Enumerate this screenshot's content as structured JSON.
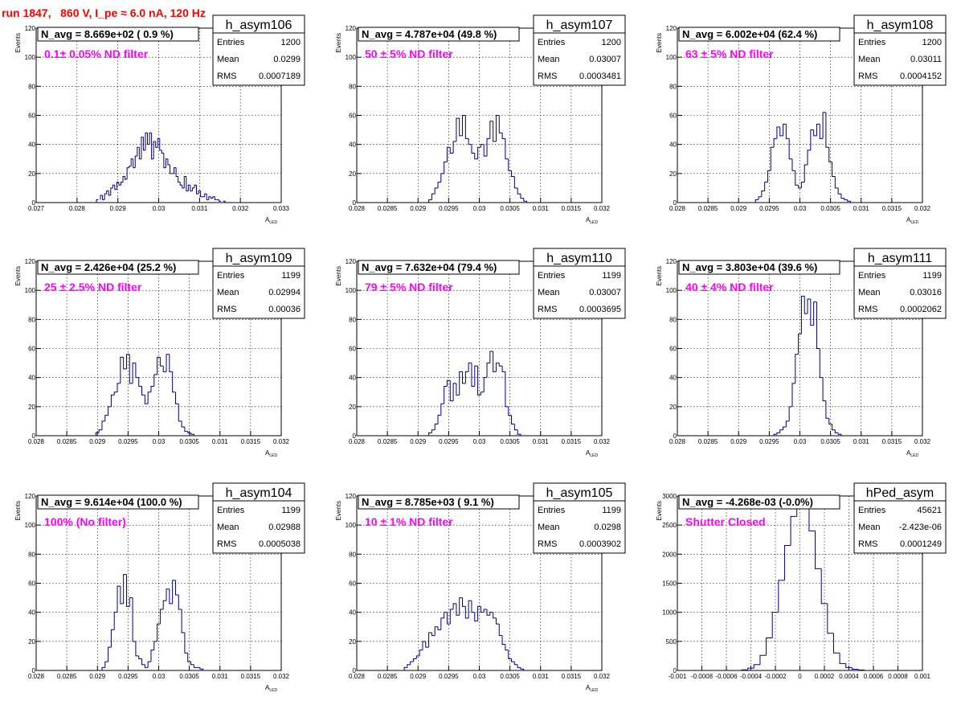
{
  "header": {
    "title": "run 1847,   860 V, I_pe ≈ 6.0 nA, 120 Hz"
  },
  "chart_data": [
    {
      "type": "bar",
      "name": "h_asym106",
      "navg": "N_avg = 8.669e+02 ( 0.9 %)",
      "filter": "0.1± 0.05% ND filter",
      "stats": {
        "entries": "1200",
        "mean": "0.0299",
        "rms": "0.0007189"
      },
      "stat_labels": [
        "Entries",
        "Mean",
        "RMS"
      ],
      "xlabel": "A_LED",
      "ylabel": "Events",
      "xlim": [
        0.027,
        0.033
      ],
      "ylim": [
        0,
        120
      ],
      "xticks": [
        "0.027",
        "0.028",
        "0.029",
        "0.03",
        "0.031",
        "0.032",
        "0.033"
      ],
      "yticks": [
        "0",
        "20",
        "40",
        "60",
        "80",
        "100",
        "120"
      ],
      "x": [
        0.0285,
        0.0286,
        0.02865,
        0.0287,
        0.02875,
        0.0288,
        0.02885,
        0.0289,
        0.02895,
        0.029,
        0.02905,
        0.0291,
        0.02915,
        0.0292,
        0.02925,
        0.0293,
        0.02935,
        0.0294,
        0.02945,
        0.0295,
        0.02955,
        0.0296,
        0.02965,
        0.0297,
        0.02975,
        0.0298,
        0.02985,
        0.0299,
        0.02995,
        0.03,
        0.03005,
        0.0301,
        0.03015,
        0.0302,
        0.03025,
        0.0303,
        0.03035,
        0.0304,
        0.03045,
        0.0305,
        0.03055,
        0.0306,
        0.03065,
        0.0307,
        0.03075,
        0.0308,
        0.03085,
        0.0309,
        0.03095,
        0.031,
        0.03105,
        0.0311,
        0.03115,
        0.0312,
        0.03125,
        0.0313,
        0.03135,
        0.0314,
        0.03145,
        0.0315,
        0.0316
      ],
      "values": [
        2,
        5,
        2,
        6,
        8,
        5,
        10,
        12,
        9,
        14,
        12,
        14,
        18,
        16,
        24,
        25,
        30,
        24,
        32,
        38,
        30,
        45,
        36,
        48,
        40,
        48,
        30,
        42,
        38,
        44,
        36,
        34,
        24,
        30,
        26,
        20,
        20,
        24,
        18,
        14,
        12,
        10,
        18,
        8,
        12,
        8,
        10,
        12,
        6,
        8,
        4,
        4,
        6,
        2,
        4,
        3,
        4,
        2,
        2,
        1,
        1
      ]
    },
    {
      "type": "bar",
      "name": "h_asym107",
      "navg": "N_avg = 4.787e+04 (49.8 %)",
      "filter": "50 ± 5% ND filter",
      "stats": {
        "entries": "1200",
        "mean": "0.03007",
        "rms": "0.0003481"
      },
      "stat_labels": [
        "Entries",
        "Mean",
        "RMS"
      ],
      "xlabel": "A_LED",
      "ylabel": "Events",
      "xlim": [
        0.028,
        0.032
      ],
      "ylim": [
        0,
        120
      ],
      "xticks": [
        "0.028",
        "0.0285",
        "0.029",
        "0.0295",
        "0.03",
        "0.0305",
        "0.031",
        "0.0315",
        "0.032"
      ],
      "yticks": [
        "0",
        "20",
        "40",
        "60",
        "80",
        "100",
        "120"
      ],
      "x": [
        0.0292,
        0.02925,
        0.0293,
        0.02935,
        0.0294,
        0.02945,
        0.0295,
        0.02955,
        0.0296,
        0.02965,
        0.0297,
        0.02975,
        0.0298,
        0.02985,
        0.0299,
        0.02995,
        0.03,
        0.03005,
        0.0301,
        0.03015,
        0.0302,
        0.03025,
        0.0303,
        0.03035,
        0.0304,
        0.03045,
        0.0305,
        0.03055,
        0.0306,
        0.03065,
        0.0307,
        0.03075
      ],
      "values": [
        2,
        6,
        10,
        14,
        20,
        28,
        38,
        34,
        42,
        58,
        46,
        60,
        44,
        40,
        34,
        30,
        38,
        40,
        32,
        44,
        56,
        42,
        60,
        48,
        44,
        30,
        22,
        18,
        10,
        6,
        3,
        1
      ]
    },
    {
      "type": "bar",
      "name": "h_asym108",
      "navg": "N_avg = 6.002e+04 (62.4 %)",
      "filter": "63 ± 5% ND filter",
      "stats": {
        "entries": "1200",
        "mean": "0.03011",
        "rms": "0.0004152"
      },
      "stat_labels": [
        "Entries",
        "Mean",
        "RMS"
      ],
      "xlabel": "A_LED",
      "ylabel": "Events",
      "xlim": [
        0.028,
        0.032
      ],
      "ylim": [
        0,
        120
      ],
      "xticks": [
        "0.028",
        "0.0285",
        "0.029",
        "0.0295",
        "0.03",
        "0.0305",
        "0.031",
        "0.0315",
        "0.032"
      ],
      "yticks": [
        "0",
        "20",
        "40",
        "60",
        "80",
        "100",
        "120"
      ],
      "x": [
        0.0293,
        0.02935,
        0.0294,
        0.02945,
        0.0295,
        0.02955,
        0.0296,
        0.02965,
        0.0297,
        0.02975,
        0.0298,
        0.02985,
        0.0299,
        0.02995,
        0.03,
        0.03005,
        0.0301,
        0.03015,
        0.0302,
        0.03025,
        0.0303,
        0.03035,
        0.0304,
        0.03045,
        0.0305,
        0.03055,
        0.0306,
        0.03065,
        0.0307,
        0.03075,
        0.0308
      ],
      "values": [
        2,
        4,
        8,
        14,
        22,
        38,
        44,
        52,
        46,
        54,
        44,
        30,
        22,
        12,
        10,
        14,
        26,
        36,
        50,
        46,
        54,
        44,
        62,
        38,
        28,
        18,
        10,
        6,
        3,
        2,
        1
      ]
    },
    {
      "type": "bar",
      "name": "h_asym109",
      "navg": "N_avg = 2.426e+04 (25.2 %)",
      "filter": "25 ± 2.5% ND filter",
      "stats": {
        "entries": "1199",
        "mean": "0.02994",
        "rms": "0.00036"
      },
      "stat_labels": [
        "Entries",
        "Mean",
        "RMS"
      ],
      "xlabel": "A_LED",
      "ylabel": "Events",
      "xlim": [
        0.028,
        0.032
      ],
      "ylim": [
        0,
        120
      ],
      "xticks": [
        "0.028",
        "0.0285",
        "0.029",
        "0.0295",
        "0.03",
        "0.0305",
        "0.031",
        "0.0315",
        "0.032"
      ],
      "yticks": [
        "0",
        "20",
        "40",
        "60",
        "80",
        "100",
        "120"
      ],
      "x": [
        0.029,
        0.02905,
        0.0291,
        0.02915,
        0.0292,
        0.02925,
        0.0293,
        0.02935,
        0.0294,
        0.02945,
        0.0295,
        0.02955,
        0.0296,
        0.02965,
        0.0297,
        0.02975,
        0.0298,
        0.02985,
        0.0299,
        0.02995,
        0.03,
        0.03005,
        0.0301,
        0.03015,
        0.0302,
        0.03025,
        0.0303,
        0.03035,
        0.0304,
        0.03045,
        0.0305,
        0.03055
      ],
      "values": [
        2,
        4,
        10,
        14,
        20,
        28,
        30,
        36,
        54,
        46,
        56,
        36,
        50,
        40,
        34,
        28,
        22,
        30,
        34,
        42,
        54,
        48,
        44,
        56,
        44,
        30,
        22,
        10,
        6,
        3,
        2,
        1
      ]
    },
    {
      "type": "bar",
      "name": "h_asym110",
      "navg": "N_avg = 7.632e+04 (79.4 %)",
      "filter": "79 ± 5% ND filter",
      "stats": {
        "entries": "1199",
        "mean": "0.03007",
        "rms": "0.0003695"
      },
      "stat_labels": [
        "Entries",
        "Mean",
        "RMS"
      ],
      "xlabel": "A_LED",
      "ylabel": "Events",
      "xlim": [
        0.028,
        0.032
      ],
      "ylim": [
        0,
        120
      ],
      "xticks": [
        "0.028",
        "0.0285",
        "0.029",
        "0.0295",
        "0.03",
        "0.0305",
        "0.031",
        "0.0315",
        "0.032"
      ],
      "yticks": [
        "0",
        "20",
        "40",
        "60",
        "80",
        "100",
        "120"
      ],
      "x": [
        0.0292,
        0.02925,
        0.0293,
        0.02935,
        0.0294,
        0.02945,
        0.0295,
        0.02955,
        0.0296,
        0.02965,
        0.0297,
        0.02975,
        0.0298,
        0.02985,
        0.0299,
        0.02995,
        0.03,
        0.03005,
        0.0301,
        0.03015,
        0.0302,
        0.03025,
        0.0303,
        0.03035,
        0.0304,
        0.03045,
        0.0305,
        0.03055,
        0.0306,
        0.03065
      ],
      "values": [
        2,
        4,
        8,
        14,
        22,
        34,
        38,
        24,
        36,
        28,
        44,
        36,
        44,
        50,
        34,
        48,
        28,
        30,
        40,
        50,
        58,
        44,
        50,
        48,
        44,
        20,
        14,
        8,
        4,
        1
      ]
    },
    {
      "type": "bar",
      "name": "h_asym111",
      "navg": "N_avg = 3.803e+04 (39.6 %)",
      "filter": "40 ± 4% ND filter",
      "stats": {
        "entries": "1199",
        "mean": "0.03016",
        "rms": "0.0002062"
      },
      "stat_labels": [
        "Entries",
        "Mean",
        "RMS"
      ],
      "xlabel": "A_LED",
      "ylabel": "Events",
      "xlim": [
        0.028,
        0.032
      ],
      "ylim": [
        0,
        120
      ],
      "xticks": [
        "0.028",
        "0.0285",
        "0.029",
        "0.0295",
        "0.03",
        "0.0305",
        "0.031",
        "0.0315",
        "0.032"
      ],
      "yticks": [
        "0",
        "20",
        "40",
        "60",
        "80",
        "100",
        "120"
      ],
      "x": [
        0.0296,
        0.02965,
        0.0297,
        0.02975,
        0.0298,
        0.02985,
        0.0299,
        0.02995,
        0.03,
        0.03005,
        0.0301,
        0.03015,
        0.0302,
        0.03025,
        0.0303,
        0.03035,
        0.0304,
        0.03045,
        0.0305,
        0.03055,
        0.0306,
        0.03065
      ],
      "values": [
        1,
        2,
        4,
        6,
        10,
        20,
        36,
        56,
        70,
        96,
        84,
        94,
        76,
        92,
        60,
        40,
        24,
        12,
        8,
        4,
        2,
        1
      ]
    },
    {
      "type": "bar",
      "name": "h_asym104",
      "navg": "N_avg = 9.614e+04 (100.0 %)",
      "filter": "100% (No filter)",
      "stats": {
        "entries": "1199",
        "mean": "0.02988",
        "rms": "0.0005038"
      },
      "stat_labels": [
        "Entries",
        "Mean",
        "RMS"
      ],
      "xlabel": "A_LED",
      "ylabel": "Events",
      "xlim": [
        0.028,
        0.032
      ],
      "ylim": [
        0,
        120
      ],
      "xticks": [
        "0.028",
        "0.0285",
        "0.029",
        "0.0295",
        "0.03",
        "0.0305",
        "0.031",
        "0.0315",
        "0.032"
      ],
      "yticks": [
        "0",
        "20",
        "40",
        "60",
        "80",
        "100",
        "120"
      ],
      "x": [
        0.0291,
        0.02915,
        0.0292,
        0.02925,
        0.0293,
        0.02935,
        0.0294,
        0.02945,
        0.0295,
        0.02955,
        0.0296,
        0.02965,
        0.0297,
        0.02975,
        0.0298,
        0.02985,
        0.0299,
        0.02995,
        0.03,
        0.03005,
        0.0301,
        0.03015,
        0.0302,
        0.03025,
        0.0303,
        0.03035,
        0.0304,
        0.03045,
        0.0305,
        0.03055,
        0.0306,
        0.03065,
        0.0307
      ],
      "values": [
        2,
        6,
        16,
        28,
        40,
        58,
        46,
        66,
        44,
        50,
        20,
        10,
        8,
        4,
        2,
        6,
        14,
        20,
        32,
        42,
        48,
        56,
        46,
        62,
        52,
        42,
        26,
        12,
        6,
        4,
        2,
        2,
        1
      ]
    },
    {
      "type": "bar",
      "name": "h_asym105",
      "navg": "N_avg = 8.785e+03 ( 9.1 %)",
      "filter": "10 ± 1% ND filter",
      "stats": {
        "entries": "1199",
        "mean": "0.0298",
        "rms": "0.0003902"
      },
      "stat_labels": [
        "Entries",
        "Mean",
        "RMS"
      ],
      "xlabel": "A_LED",
      "ylabel": "Events",
      "xlim": [
        0.028,
        0.032
      ],
      "ylim": [
        0,
        120
      ],
      "xticks": [
        "0.028",
        "0.0285",
        "0.029",
        "0.0295",
        "0.03",
        "0.0305",
        "0.031",
        "0.0315",
        "0.032"
      ],
      "yticks": [
        "0",
        "20",
        "40",
        "60",
        "80",
        "100",
        "120"
      ],
      "x": [
        0.0288,
        0.02885,
        0.0289,
        0.02895,
        0.029,
        0.02905,
        0.0291,
        0.02915,
        0.0292,
        0.02925,
        0.0293,
        0.02935,
        0.0294,
        0.02945,
        0.0295,
        0.02955,
        0.0296,
        0.02965,
        0.0297,
        0.02975,
        0.0298,
        0.02985,
        0.0299,
        0.02995,
        0.03,
        0.03005,
        0.0301,
        0.03015,
        0.0302,
        0.03025,
        0.0303,
        0.03035,
        0.0304,
        0.03045,
        0.0305,
        0.03055,
        0.0306,
        0.03065,
        0.0307
      ],
      "values": [
        2,
        4,
        6,
        8,
        10,
        14,
        20,
        16,
        26,
        24,
        30,
        28,
        36,
        40,
        32,
        42,
        46,
        38,
        50,
        44,
        36,
        48,
        40,
        34,
        44,
        40,
        42,
        38,
        40,
        36,
        32,
        24,
        18,
        14,
        8,
        6,
        4,
        2,
        1
      ]
    },
    {
      "type": "bar",
      "name": "hPed_asym",
      "navg": "N_avg = -4.268e-03 (-0.0%)",
      "filter": "Shutter Closed",
      "stats": {
        "entries": "45621",
        "mean": "-2.423e-06",
        "rms": "0.0001249"
      },
      "stat_labels": [
        "Entries",
        "Mean",
        "RMS"
      ],
      "xlabel": "",
      "ylabel": "Events",
      "xlim": [
        -0.001,
        0.001
      ],
      "ylim": [
        0,
        3000
      ],
      "xticks": [
        "-0.001",
        "-0.0008",
        "-0.0006",
        "-0.0004",
        "-0.0002",
        "0",
        "0.0002",
        "0.0004",
        "0.0006",
        "0.0008",
        "0.001"
      ],
      "yticks": [
        "0",
        "500",
        "1000",
        "1500",
        "2000",
        "2500",
        "3000"
      ],
      "x": [
        -0.00045,
        -0.0004,
        -0.00035,
        -0.0003,
        -0.00025,
        -0.0002,
        -0.00015,
        -0.0001,
        -5e-05,
        0.0,
        5e-05,
        0.0001,
        0.00015,
        0.0002,
        0.00025,
        0.0003,
        0.00035,
        0.0004,
        0.00045,
        0.0005
      ],
      "values": [
        10,
        40,
        100,
        260,
        560,
        1000,
        1550,
        2150,
        2650,
        2900,
        2780,
        2400,
        1750,
        1150,
        640,
        300,
        120,
        50,
        20,
        8
      ]
    }
  ]
}
